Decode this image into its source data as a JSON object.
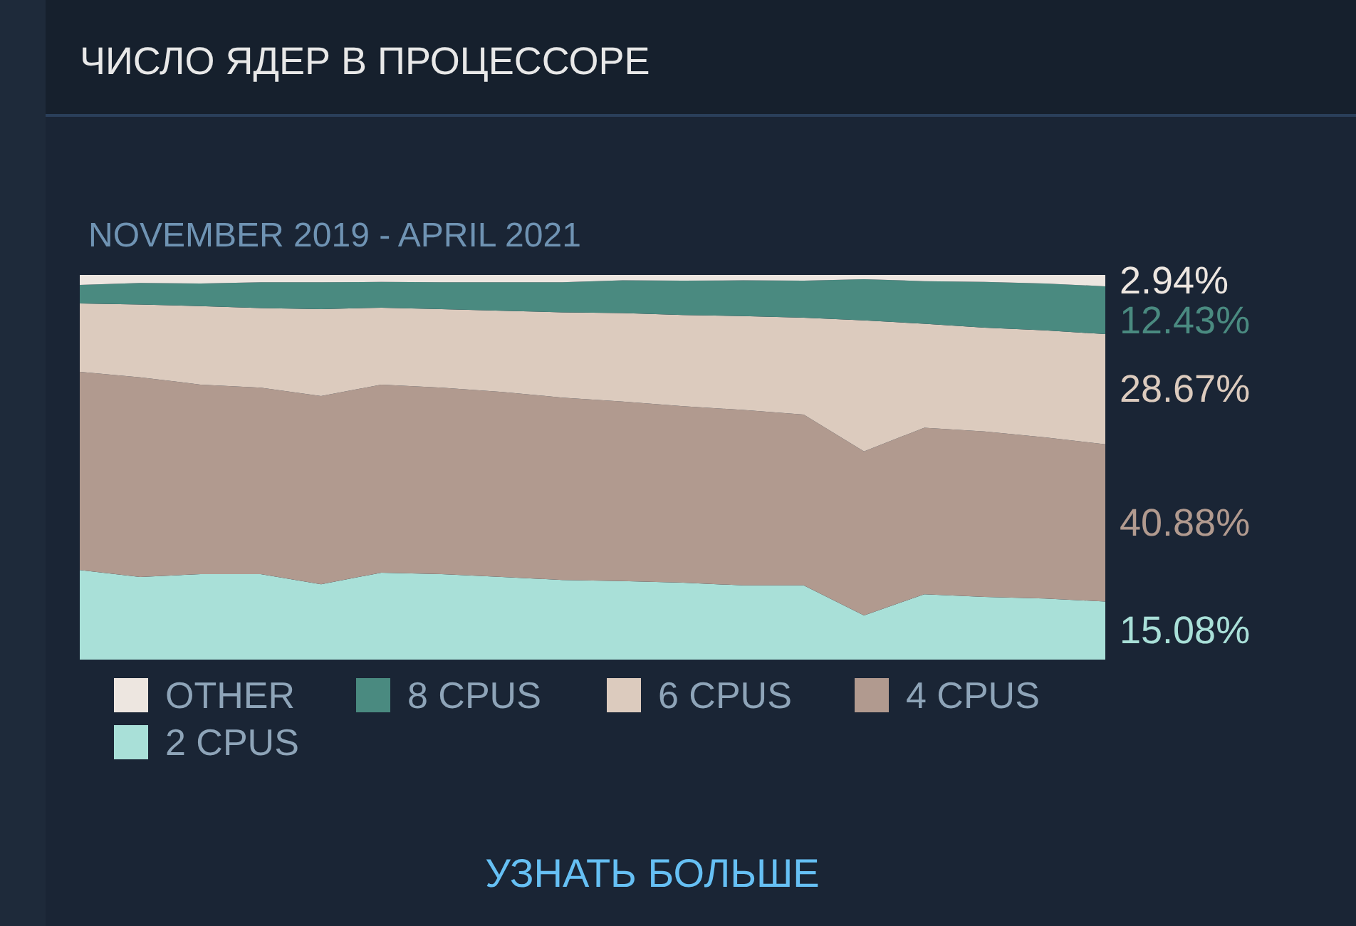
{
  "chart_data": {
    "type": "area",
    "stacked": true,
    "title": "ЧИСЛО ЯДЕР В ПРОЦЕССОРЕ",
    "subtitle": "NOVEMBER 2019 - APRIL 2021",
    "categories": [
      null,
      null,
      null,
      null,
      null,
      null,
      null,
      null,
      null,
      null,
      null,
      null,
      null,
      null,
      null,
      null,
      null,
      null
    ],
    "legend": "bottom",
    "annotations": [
      "УЗНАТЬ БОЛЬШЕ"
    ],
    "series": [
      {
        "name": "2 CPUS",
        "color": "#a9e0d8",
        "values": [
          23.3,
          21.5,
          22.2,
          22.2,
          19.6,
          22.6,
          22.2,
          21.5,
          20.7,
          20.4,
          20.0,
          19.3,
          19.3,
          11.5,
          17.0,
          16.3,
          15.9,
          15.08
        ],
        "value_labels": [
          null,
          null,
          null,
          null,
          null,
          null,
          null,
          null,
          null,
          null,
          null,
          null,
          null,
          null,
          null,
          null,
          null,
          "15.08%"
        ]
      },
      {
        "name": "4 CPUS",
        "color": "#b19a8f",
        "values": [
          51.5,
          51.9,
          49.3,
          48.5,
          48.9,
          48.9,
          48.5,
          48.1,
          47.4,
          46.7,
          45.9,
          45.6,
          44.4,
          42.6,
          43.3,
          43.0,
          41.9,
          40.88
        ],
        "value_labels": [
          null,
          null,
          null,
          null,
          null,
          null,
          null,
          null,
          null,
          null,
          null,
          null,
          null,
          null,
          null,
          null,
          null,
          "40.88%"
        ]
      },
      {
        "name": "6 CPUS",
        "color": "#dccbbe",
        "values": [
          17.8,
          18.9,
          20.4,
          20.7,
          22.6,
          20.0,
          20.4,
          21.1,
          22.2,
          23.0,
          23.7,
          24.4,
          25.2,
          34.1,
          27.0,
          27.0,
          27.8,
          28.67
        ],
        "value_labels": [
          null,
          null,
          null,
          null,
          null,
          null,
          null,
          null,
          null,
          null,
          null,
          null,
          null,
          null,
          null,
          null,
          null,
          "28.67%"
        ]
      },
      {
        "name": "8 CPUS",
        "color": "#4a8a80",
        "values": [
          4.8,
          5.6,
          5.9,
          6.7,
          7.0,
          6.7,
          7.0,
          7.4,
          7.8,
          8.5,
          8.9,
          9.3,
          9.6,
          10.7,
          11.1,
          11.9,
          12.2,
          12.43
        ],
        "value_labels": [
          null,
          null,
          null,
          null,
          null,
          null,
          null,
          null,
          null,
          null,
          null,
          null,
          null,
          null,
          null,
          null,
          null,
          "12.43%"
        ]
      },
      {
        "name": "OTHER",
        "color": "#ede6e0",
        "values": [
          2.6,
          2.1,
          2.2,
          1.9,
          1.9,
          1.8,
          1.9,
          1.9,
          1.9,
          1.4,
          1.5,
          1.4,
          1.5,
          1.1,
          1.6,
          1.8,
          2.2,
          2.94
        ],
        "value_labels": [
          null,
          null,
          null,
          null,
          null,
          null,
          null,
          null,
          null,
          null,
          null,
          null,
          null,
          null,
          null,
          null,
          null,
          "2.94%"
        ]
      }
    ]
  }
}
